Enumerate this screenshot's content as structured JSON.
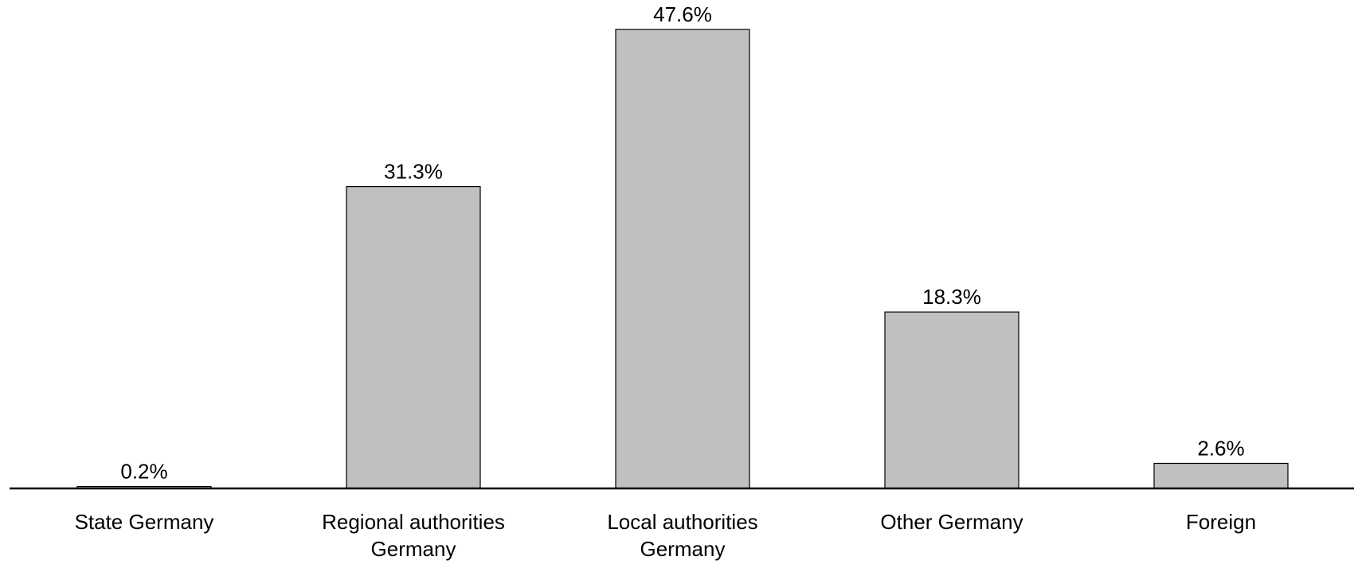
{
  "chart_data": {
    "type": "bar",
    "title": "",
    "xlabel": "",
    "ylabel": "",
    "categories": [
      [
        "State Germany"
      ],
      [
        "Regional authorities",
        "Germany"
      ],
      [
        "Local authorities",
        "Germany"
      ],
      [
        "Other Germany"
      ],
      [
        "Foreign"
      ]
    ],
    "values": [
      0.2,
      31.3,
      47.6,
      18.3,
      2.6
    ],
    "value_labels": [
      "0.2%",
      "31.3%",
      "47.6%",
      "18.3%",
      "2.6%"
    ],
    "ylim": [
      0,
      50
    ],
    "grid": false,
    "legend": "none",
    "colors": {
      "bar_fill": "#c0c0c0",
      "bar_stroke": "#000000",
      "axis": "#000000",
      "text": "#000000"
    }
  }
}
